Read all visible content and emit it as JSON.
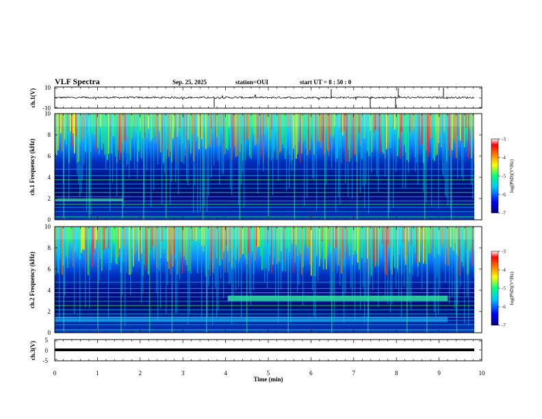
{
  "header": {
    "title": "VLF Spectra",
    "date": "Sep. 25, 2025",
    "station": "station=OUI",
    "start": "start UT =  8 : 50 : 0"
  },
  "chart_data": [
    {
      "type": "line",
      "id": "ch1_waveform",
      "ylabel": "ch.1(V)",
      "ylim": [
        -10,
        10
      ],
      "ytick_labels": [
        "10",
        "-10"
      ],
      "xlim": [
        0,
        10
      ]
    },
    {
      "type": "heatmap",
      "id": "ch1_spectrogram",
      "ylabel": "ch.1 Frequency (kHz)",
      "ylim": [
        0,
        10
      ],
      "ytick_labels": [
        "0",
        "2",
        "4",
        "6",
        "8",
        "10"
      ],
      "xlim": [
        0,
        10
      ],
      "colorbar": {
        "label": "log(PSD)(V²/Hz)",
        "range": [
          -7,
          -3
        ],
        "tick_labels": [
          "-3",
          "-4",
          "-5",
          "-6",
          "-7"
        ]
      }
    },
    {
      "type": "heatmap",
      "id": "ch2_spectrogram",
      "ylabel": "ch.2 Frequency (kHz)",
      "ylim": [
        0,
        10
      ],
      "ytick_labels": [
        "0",
        "2",
        "4",
        "6",
        "8",
        "10"
      ],
      "xlim": [
        0,
        10
      ],
      "colorbar": {
        "label": "log(PSD)(V²/Hz)",
        "range": [
          -7,
          -3
        ],
        "tick_labels": [
          "-3",
          "-4",
          "-5",
          "-6",
          "-7"
        ]
      }
    },
    {
      "type": "line",
      "id": "ch3_waveform",
      "ylabel": "ch.3(V)",
      "ylim": [
        -5,
        5
      ],
      "ytick_labels": [
        "5",
        "0",
        "-5"
      ],
      "xlim": [
        0,
        10
      ]
    }
  ],
  "xaxis": {
    "label": "Time (min)",
    "tick_labels": [
      "0",
      "1",
      "2",
      "3",
      "4",
      "5",
      "6",
      "7",
      "8",
      "9",
      "10"
    ]
  }
}
